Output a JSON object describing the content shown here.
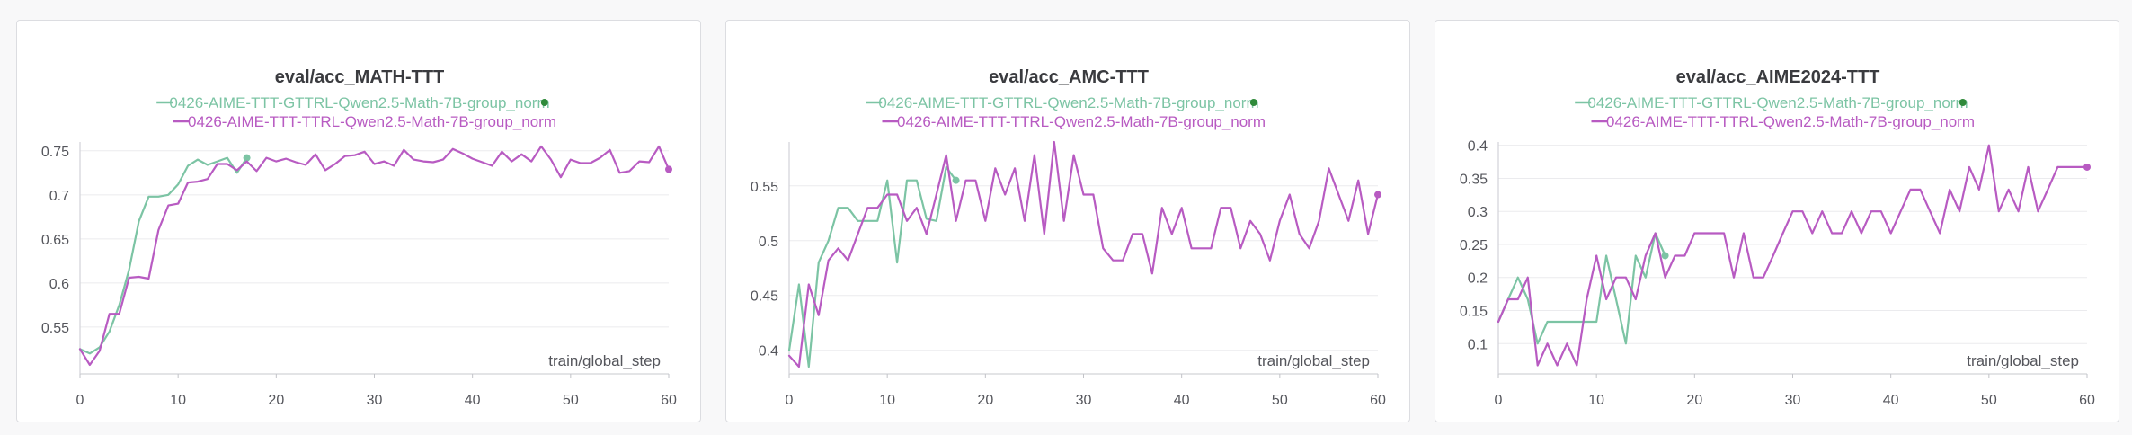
{
  "colors": {
    "gttrl": "#7cc4a4",
    "ttrl": "#b85bc2",
    "gttrl_dot": "#2f8a3a"
  },
  "icons": {
    "legend_marker": "circle-dot"
  },
  "panels": [
    {
      "title": "eval/acc_MATH-TTT",
      "xlabel": "train/global_step",
      "chart_data": {
        "type": "line",
        "title": "eval/acc_MATH-TTT",
        "xlabel": "train/global_step",
        "ylabel": "",
        "xlim": [
          0,
          60
        ],
        "ylim": [
          0.505,
          0.76
        ],
        "xticks": [
          0,
          10,
          20,
          30,
          40,
          50,
          60
        ],
        "yticks": [
          0.55,
          0.6,
          0.65,
          0.7,
          0.75
        ],
        "ytick_labels": [
          "0.55",
          "0.6",
          "0.65",
          "0.7",
          "0.75"
        ],
        "grid": true,
        "legend": "top-center",
        "series": [
          {
            "name": "0426-AIME-TTT-GTTRL-Qwen2.5-Math-7B-group_norm",
            "color": "#7cc4a4",
            "x": [
              0,
              1,
              2,
              3,
              4,
              5,
              6,
              7,
              8,
              9,
              10,
              11,
              12,
              13,
              14,
              15,
              16,
              17
            ],
            "y": [
              0.525,
              0.52,
              0.527,
              0.545,
              0.575,
              0.615,
              0.67,
              0.698,
              0.698,
              0.7,
              0.712,
              0.733,
              0.74,
              0.734,
              0.738,
              0.742,
              0.725,
              0.742
            ]
          },
          {
            "name": "0426-AIME-TTT-TTRL-Qwen2.5-Math-7B-group_norm",
            "color": "#b85bc2",
            "x": [
              0,
              1,
              2,
              3,
              4,
              5,
              6,
              7,
              8,
              9,
              10,
              11,
              12,
              13,
              14,
              15,
              16,
              17,
              18,
              19,
              20,
              21,
              22,
              23,
              24,
              25,
              26,
              27,
              28,
              29,
              30,
              31,
              32,
              33,
              34,
              35,
              36,
              37,
              38,
              39,
              40,
              41,
              42,
              43,
              44,
              45,
              46,
              47,
              48,
              49,
              50,
              51,
              52,
              53,
              54,
              55,
              56,
              57,
              58,
              59,
              60
            ],
            "y": [
              0.525,
              0.507,
              0.523,
              0.565,
              0.565,
              0.606,
              0.607,
              0.605,
              0.66,
              0.688,
              0.69,
              0.714,
              0.715,
              0.718,
              0.735,
              0.735,
              0.728,
              0.738,
              0.727,
              0.742,
              0.738,
              0.741,
              0.737,
              0.734,
              0.746,
              0.728,
              0.735,
              0.744,
              0.745,
              0.749,
              0.735,
              0.738,
              0.733,
              0.751,
              0.74,
              0.738,
              0.737,
              0.74,
              0.752,
              0.747,
              0.741,
              0.737,
              0.733,
              0.749,
              0.738,
              0.746,
              0.738,
              0.755,
              0.74,
              0.72,
              0.74,
              0.736,
              0.736,
              0.742,
              0.751,
              0.725,
              0.727,
              0.738,
              0.737,
              0.755,
              0.729
            ]
          }
        ]
      }
    },
    {
      "title": "eval/acc_AMC-TTT",
      "xlabel": "train/global_step",
      "chart_data": {
        "type": "line",
        "title": "eval/acc_AMC-TTT",
        "xlabel": "train/global_step",
        "ylabel": "",
        "xlim": [
          0,
          60
        ],
        "ylim": [
          0.385,
          0.59
        ],
        "xticks": [
          0,
          10,
          20,
          30,
          40,
          50,
          60
        ],
        "yticks": [
          0.4,
          0.45,
          0.5,
          0.55
        ],
        "ytick_labels": [
          "0.4",
          "0.45",
          "0.5",
          "0.55"
        ],
        "grid": true,
        "legend": "top-center",
        "series": [
          {
            "name": "0426-AIME-TTT-GTTRL-Qwen2.5-Math-7B-group_norm",
            "color": "#7cc4a4",
            "x": [
              0,
              1,
              2,
              3,
              4,
              5,
              6,
              7,
              8,
              9,
              10,
              11,
              12,
              13,
              14,
              15,
              16,
              17
            ],
            "y": [
              0.4,
              0.46,
              0.385,
              0.48,
              0.5,
              0.53,
              0.53,
              0.518,
              0.518,
              0.518,
              0.555,
              0.48,
              0.555,
              0.555,
              0.52,
              0.518,
              0.567,
              0.555
            ]
          },
          {
            "name": "0426-AIME-TTT-TTRL-Qwen2.5-Math-7B-group_norm",
            "color": "#b85bc2",
            "x": [
              0,
              1,
              2,
              3,
              4,
              5,
              6,
              7,
              8,
              9,
              10,
              11,
              12,
              13,
              14,
              15,
              16,
              17,
              18,
              19,
              20,
              21,
              22,
              23,
              24,
              25,
              26,
              27,
              28,
              29,
              30,
              31,
              32,
              33,
              34,
              35,
              36,
              37,
              38,
              39,
              40,
              41,
              42,
              43,
              44,
              45,
              46,
              47,
              48,
              49,
              50,
              51,
              52,
              53,
              54,
              55,
              56,
              57,
              58,
              59,
              60
            ],
            "y": [
              0.395,
              0.385,
              0.46,
              0.432,
              0.482,
              0.493,
              0.482,
              0.506,
              0.53,
              0.53,
              0.542,
              0.542,
              0.518,
              0.53,
              0.506,
              0.542,
              0.578,
              0.518,
              0.555,
              0.555,
              0.518,
              0.566,
              0.542,
              0.566,
              0.518,
              0.578,
              0.506,
              0.59,
              0.518,
              0.578,
              0.542,
              0.542,
              0.493,
              0.482,
              0.482,
              0.506,
              0.506,
              0.47,
              0.53,
              0.506,
              0.53,
              0.493,
              0.493,
              0.493,
              0.53,
              0.53,
              0.493,
              0.518,
              0.506,
              0.482,
              0.518,
              0.542,
              0.506,
              0.493,
              0.518,
              0.566,
              0.542,
              0.518,
              0.555,
              0.506,
              0.542
            ]
          }
        ]
      }
    },
    {
      "title": "eval/acc_AIME2024-TTT",
      "xlabel": "train/global_step",
      "chart_data": {
        "type": "line",
        "title": "eval/acc_AIME2024-TTT",
        "xlabel": "train/global_step",
        "ylabel": "",
        "xlim": [
          0,
          60
        ],
        "ylim": [
          0.065,
          0.405
        ],
        "xticks": [
          0,
          10,
          20,
          30,
          40,
          50,
          60
        ],
        "yticks": [
          0.1,
          0.15,
          0.2,
          0.25,
          0.3,
          0.35,
          0.4
        ],
        "ytick_labels": [
          "0.1",
          "0.15",
          "0.2",
          "0.25",
          "0.3",
          "0.35",
          "0.4"
        ],
        "grid": true,
        "legend": "top-center",
        "series": [
          {
            "name": "0426-AIME-TTT-GTTRL-Qwen2.5-Math-7B-group_norm",
            "color": "#7cc4a4",
            "x": [
              0,
              1,
              2,
              3,
              4,
              5,
              6,
              7,
              8,
              9,
              10,
              11,
              12,
              13,
              14,
              15,
              16,
              17
            ],
            "y": [
              0.133,
              0.167,
              0.2,
              0.167,
              0.1,
              0.133,
              0.133,
              0.133,
              0.133,
              0.133,
              0.133,
              0.233,
              0.167,
              0.1,
              0.233,
              0.2,
              0.267,
              0.233
            ]
          },
          {
            "name": "0426-AIME-TTT-TTRL-Qwen2.5-Math-7B-group_norm",
            "color": "#b85bc2",
            "x": [
              0,
              1,
              2,
              3,
              4,
              5,
              6,
              7,
              8,
              9,
              10,
              11,
              12,
              13,
              14,
              15,
              16,
              17,
              18,
              19,
              20,
              21,
              22,
              23,
              24,
              25,
              26,
              27,
              28,
              29,
              30,
              31,
              32,
              33,
              34,
              35,
              36,
              37,
              38,
              39,
              40,
              41,
              42,
              43,
              44,
              45,
              46,
              47,
              48,
              49,
              50,
              51,
              52,
              53,
              54,
              55,
              56,
              57,
              58,
              59,
              60
            ],
            "y": [
              0.133,
              0.167,
              0.167,
              0.2,
              0.067,
              0.1,
              0.067,
              0.1,
              0.067,
              0.167,
              0.233,
              0.167,
              0.2,
              0.2,
              0.167,
              0.233,
              0.267,
              0.2,
              0.233,
              0.233,
              0.267,
              0.267,
              0.267,
              0.267,
              0.2,
              0.267,
              0.2,
              0.2,
              0.233,
              0.267,
              0.3,
              0.3,
              0.267,
              0.3,
              0.267,
              0.267,
              0.3,
              0.267,
              0.3,
              0.3,
              0.267,
              0.3,
              0.333,
              0.333,
              0.3,
              0.267,
              0.333,
              0.3,
              0.367,
              0.333,
              0.4,
              0.3,
              0.333,
              0.3,
              0.367,
              0.3,
              0.333,
              0.367,
              0.367,
              0.367,
              0.367
            ]
          }
        ]
      }
    }
  ]
}
